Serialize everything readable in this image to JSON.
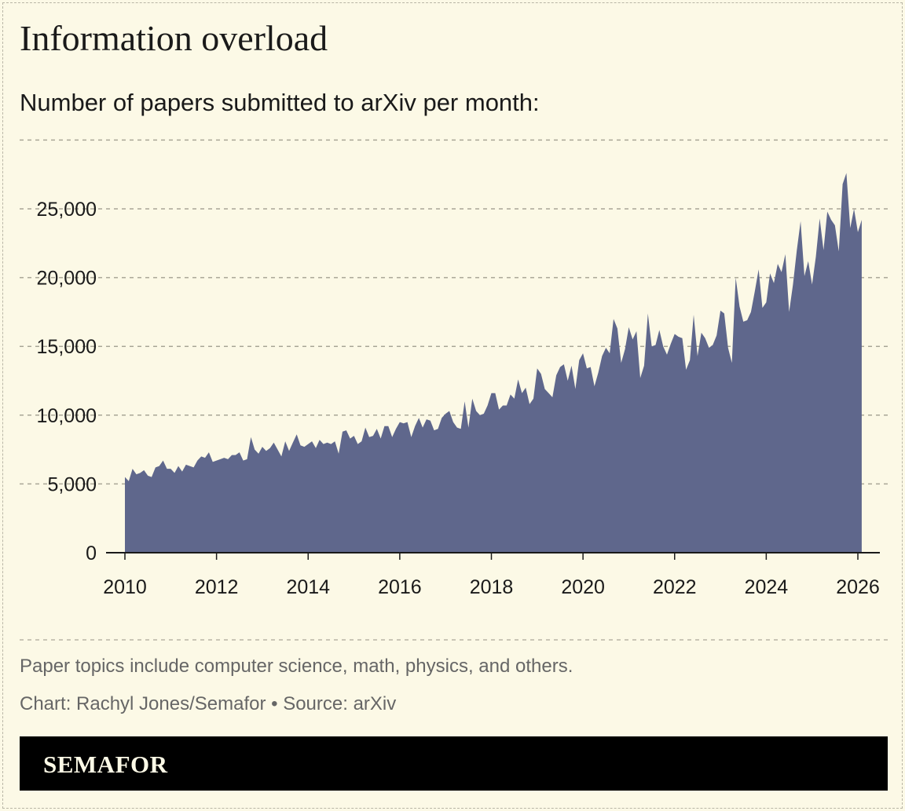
{
  "title": "Information overload",
  "subtitle": "Number of papers submitted to arXiv per month:",
  "note": "Paper topics include computer science, math, physics, and others.",
  "credit": "Chart: Rachyl Jones/Semafor • Source: arXiv",
  "logo": "SEMAFOR",
  "colors": {
    "background": "#fcf9e6",
    "area": "#5f678c",
    "logo_bar": "#000000"
  },
  "chart_data": {
    "type": "area",
    "title": "Number of papers submitted to arXiv per month:",
    "xlabel": "",
    "ylabel": "",
    "x_start": "2010-01",
    "x_frequency": "monthly",
    "xlim": [
      2010,
      2026
    ],
    "ylim": [
      0,
      30000
    ],
    "grid": true,
    "xticks": [
      2010,
      2012,
      2014,
      2016,
      2018,
      2020,
      2022,
      2024,
      2026
    ],
    "xtick_labels": [
      "2010",
      "2012",
      "2014",
      "2016",
      "2018",
      "2020",
      "2022",
      "2024",
      "2026"
    ],
    "yticks": [
      0,
      5000,
      10000,
      15000,
      20000,
      25000,
      30000
    ],
    "ytick_labels": [
      "0",
      "5,000",
      "10,000",
      "15,000",
      "20,000",
      "25,000",
      ""
    ],
    "values": [
      5500,
      5200,
      6100,
      5700,
      5800,
      6000,
      5600,
      5500,
      6200,
      6300,
      6700,
      6100,
      6100,
      5800,
      6300,
      5900,
      6400,
      6300,
      6200,
      6700,
      7000,
      6900,
      7300,
      6600,
      6700,
      6800,
      6900,
      6800,
      7100,
      7100,
      7300,
      6700,
      6800,
      8400,
      7500,
      7200,
      7700,
      7400,
      7600,
      8000,
      7500,
      7000,
      8100,
      7400,
      8000,
      8600,
      7800,
      7700,
      7900,
      8100,
      7600,
      8200,
      7900,
      8000,
      7900,
      8100,
      7200,
      8800,
      8900,
      8300,
      8500,
      7900,
      8100,
      9100,
      8400,
      8500,
      9000,
      8300,
      9200,
      9200,
      8400,
      9000,
      9500,
      9400,
      9500,
      8400,
      9200,
      9800,
      9100,
      9700,
      9600,
      8900,
      9000,
      9800,
      10100,
      10300,
      9500,
      9100,
      9000,
      11000,
      9100,
      11200,
      10300,
      10000,
      10100,
      10700,
      11600,
      11600,
      10400,
      10700,
      10700,
      11500,
      11200,
      12600,
      11600,
      12000,
      10800,
      11200,
      13400,
      13000,
      11900,
      11600,
      11300,
      12900,
      13500,
      13700,
      12500,
      13600,
      11900,
      14000,
      14500,
      13400,
      13500,
      12100,
      13100,
      14300,
      14900,
      14500,
      17000,
      16300,
      13800,
      14800,
      16400,
      15500,
      16100,
      12700,
      13600,
      17400,
      15000,
      15100,
      16200,
      15000,
      14400,
      15200,
      15900,
      15700,
      15600,
      13300,
      14000,
      17300,
      14300,
      16000,
      15600,
      14900,
      15100,
      15800,
      17600,
      17400,
      14900,
      13800,
      20000,
      17900,
      16800,
      16900,
      17500,
      19000,
      20600,
      17800,
      18200,
      20300,
      19600,
      21000,
      20400,
      21700,
      17500,
      19500,
      22000,
      24100,
      20100,
      21200,
      19500,
      21500,
      24300,
      22000,
      24800,
      24200,
      23800,
      21900,
      26800,
      27600,
      23600,
      25000,
      23300,
      24200
    ]
  }
}
